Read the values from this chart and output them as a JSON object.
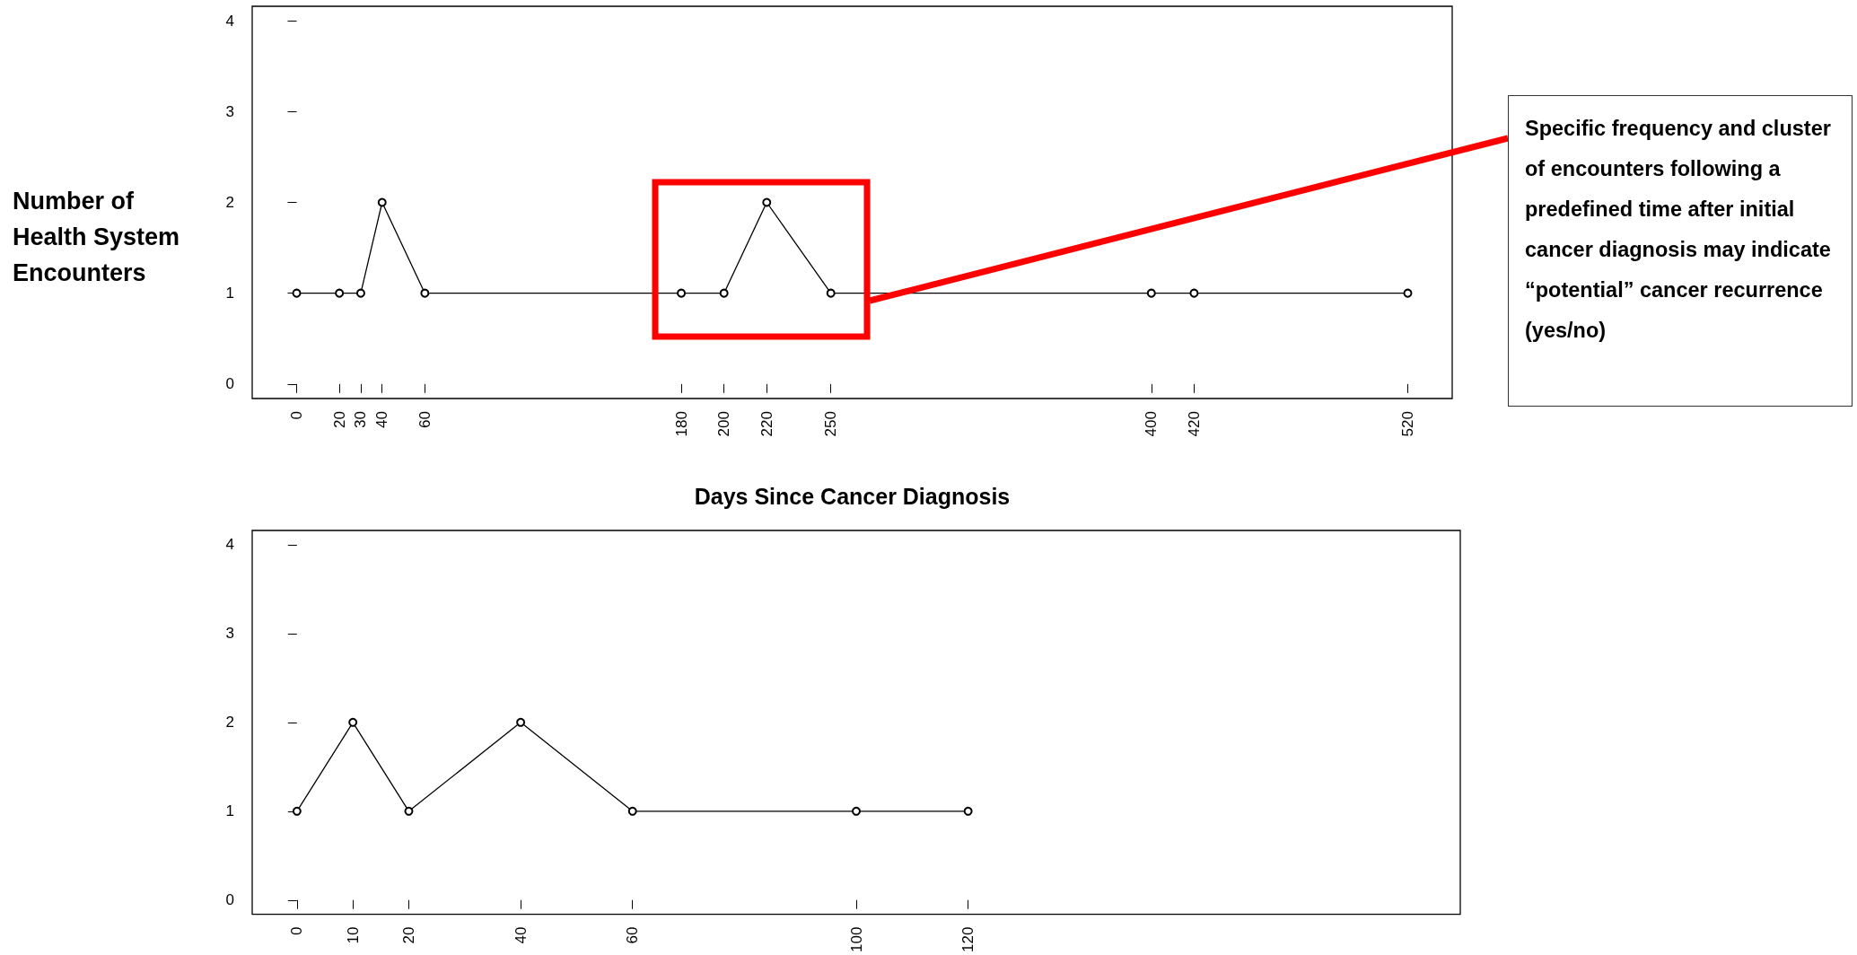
{
  "chart_data": [
    {
      "type": "line",
      "xlabel": "Days Since Cancer Diagnosis",
      "ylabel": "Number of Health System Encounters",
      "annotations": [
        "Specific frequency and cluster of encounters following a predefined time after initial cancer diagnosis may indicate “potential” cancer recurrence  (yes/no)"
      ],
      "x": [
        0,
        20,
        30,
        40,
        60,
        180,
        200,
        220,
        250,
        400,
        420,
        520
      ],
      "series": [
        {
          "color": "#000000",
          "values": [
            1,
            1,
            1,
            2,
            1,
            1,
            1,
            2,
            1,
            1,
            1,
            1
          ]
        }
      ],
      "xlim": [
        -20.8,
        540.8
      ],
      "ylim": [
        -0.16,
        4.16
      ],
      "xticks": [
        0,
        20,
        30,
        40,
        60,
        180,
        200,
        220,
        250,
        400,
        420,
        520
      ],
      "yticks": [
        0,
        1,
        2,
        3,
        4
      ],
      "marker": "circle",
      "line_style": "solid",
      "grid": false
    },
    {
      "type": "line",
      "x": [
        0,
        10,
        20,
        40,
        60,
        100,
        120
      ],
      "series": [
        {
          "color": "#000000",
          "values": [
            1,
            2,
            1,
            2,
            1,
            1,
            1
          ]
        }
      ],
      "xlim": [
        -8,
        208
      ],
      "ylim": [
        -0.16,
        4.16
      ],
      "xticks": [
        0,
        10,
        20,
        40,
        60,
        100,
        120
      ],
      "yticks": [
        0,
        1,
        2,
        3,
        4
      ],
      "marker": "circle",
      "line_style": "solid",
      "grid": false
    }
  ]
}
